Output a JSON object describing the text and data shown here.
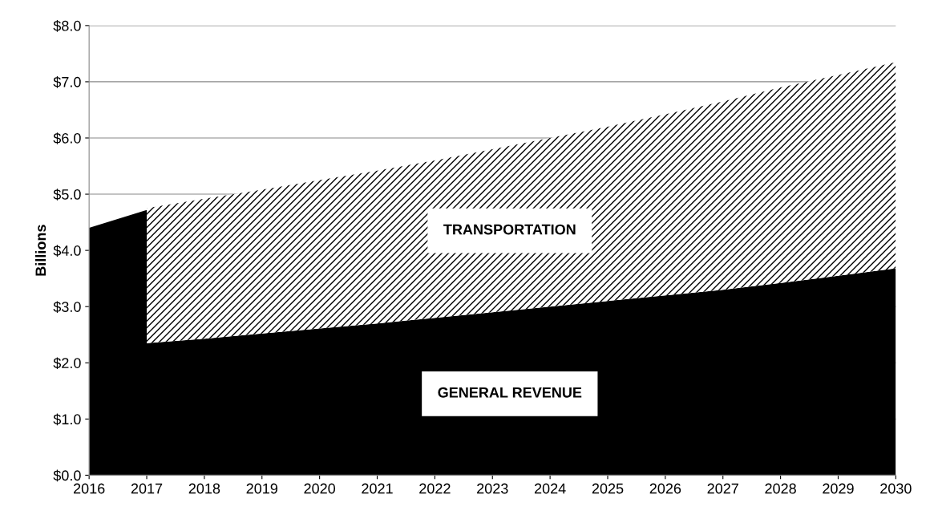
{
  "chart_data": {
    "type": "area",
    "stacked": true,
    "ylabel": "Billions",
    "x": [
      2016,
      2017,
      2017,
      2018,
      2019,
      2020,
      2021,
      2022,
      2023,
      2024,
      2025,
      2026,
      2027,
      2028,
      2029,
      2030
    ],
    "series": [
      {
        "name": "GENERAL REVENUE",
        "color": "#000000",
        "values": [
          4.4,
          4.72,
          2.35,
          2.43,
          2.52,
          2.61,
          2.7,
          2.8,
          2.9,
          3.0,
          3.1,
          3.2,
          3.3,
          3.42,
          3.55,
          3.68
        ]
      },
      {
        "name": "TRANSPORTATION",
        "color": "#000000",
        "values": [
          null,
          null,
          2.4,
          2.49,
          2.56,
          2.64,
          2.72,
          2.8,
          2.9,
          3.0,
          3.1,
          3.22,
          3.35,
          3.48,
          3.57,
          3.67
        ]
      }
    ],
    "xlim": [
      2016,
      2030
    ],
    "xticks": [
      2016,
      2017,
      2018,
      2019,
      2020,
      2021,
      2022,
      2023,
      2024,
      2025,
      2026,
      2027,
      2028,
      2029,
      2030
    ],
    "ylim": [
      0,
      8
    ],
    "yticks": [
      {
        "value": 0,
        "label": "$0.0"
      },
      {
        "value": 1,
        "label": "$1.0"
      },
      {
        "value": 2,
        "label": "$2.0"
      },
      {
        "value": 3,
        "label": "$3.0"
      },
      {
        "value": 4,
        "label": "$4.0"
      },
      {
        "value": 5,
        "label": "$5.0"
      },
      {
        "value": 6,
        "label": "$6.0"
      },
      {
        "value": 7,
        "label": "$7.0"
      },
      {
        "value": 8,
        "label": "$8.0"
      }
    ],
    "grid": "y",
    "legend": false
  }
}
